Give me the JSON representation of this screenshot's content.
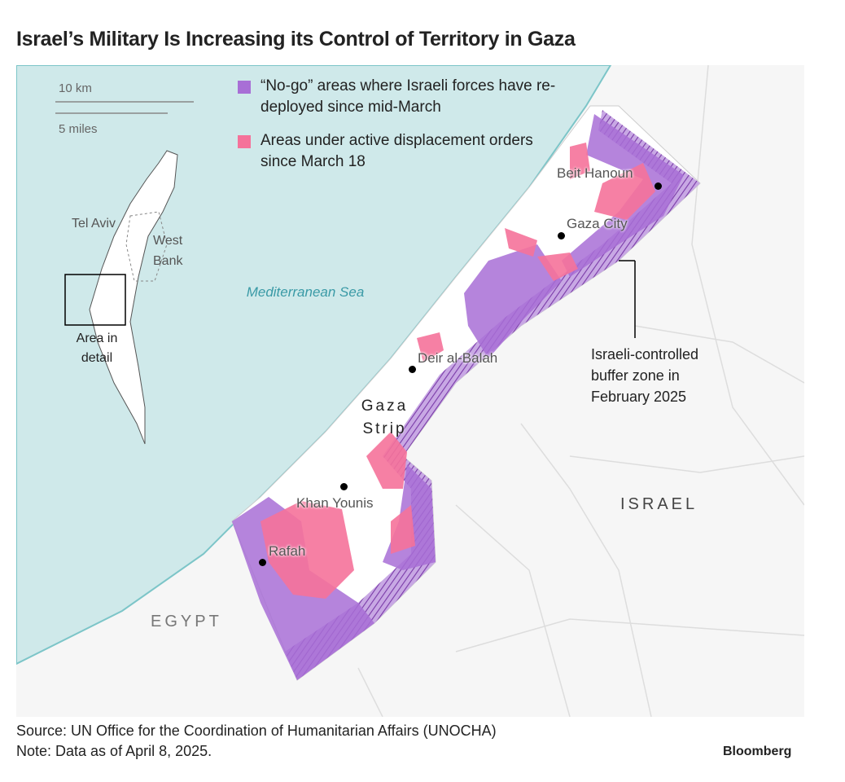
{
  "title": "Israel’s Military Is Increasing its Control of Territory in Gaza",
  "scale": {
    "km": "10 km",
    "miles": "5 miles"
  },
  "inset": {
    "city": "Tel Aviv",
    "region": "West Bank",
    "box": "Area in detail"
  },
  "legend": [
    {
      "label": "“No-go” areas where Israeli forces have re-deployed since mid-March",
      "color": "#a86fd6"
    },
    {
      "label": "Areas under active displacement orders since March 18",
      "color": "#f5729a"
    }
  ],
  "places": [
    "Beit Hanoun",
    "Gaza City",
    "Deir al-Balah",
    "Khan Younis",
    "Rafah"
  ],
  "regions": {
    "sea": "Mediterranean Sea",
    "strip": "Gaza Strip",
    "israel": "ISRAEL",
    "egypt": "EGYPT"
  },
  "annotation": "Israeli-controlled buffer zone in February 2025",
  "source": "Source: UN Office for the Coordination of Humanitarian Affairs (UNOCHA)",
  "note": "Note: Data as of April 8, 2025.",
  "brand": "Bloomberg"
}
